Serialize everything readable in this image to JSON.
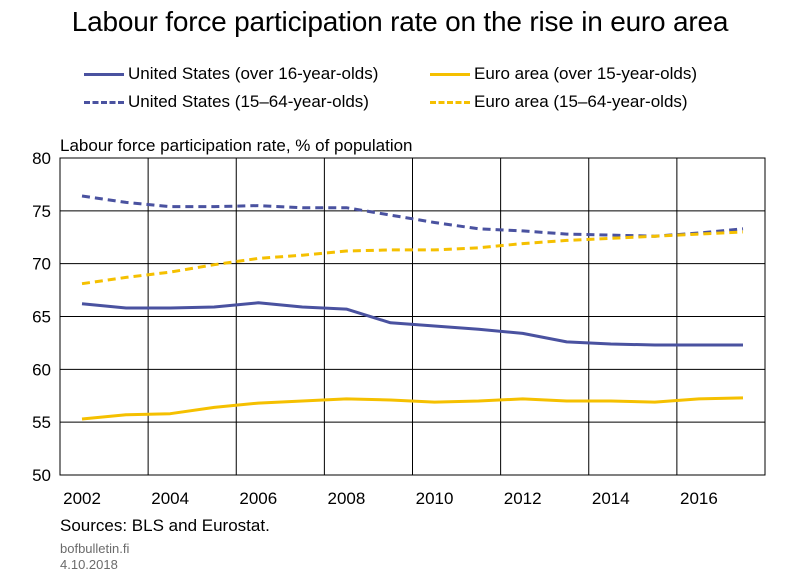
{
  "chart_data": {
    "type": "line",
    "title": "Labour force participation rate on the rise in euro area",
    "ylabel": "Labour force participation rate, % of population",
    "xlabel": "",
    "ylim": [
      50,
      80
    ],
    "xlim": [
      2001.5,
      2017.5
    ],
    "yticks": [
      50,
      55,
      60,
      65,
      70,
      75,
      80
    ],
    "xticks": [
      2002,
      2004,
      2006,
      2008,
      2010,
      2012,
      2014,
      2016
    ],
    "grid": true,
    "legend_position": "top",
    "x": [
      2002,
      2003,
      2004,
      2005,
      2006,
      2007,
      2008,
      2009,
      2010,
      2011,
      2012,
      2013,
      2014,
      2015,
      2016,
      2017
    ],
    "series": [
      {
        "name": "United States (over 16-year-olds)",
        "color": "#4a52a0",
        "style": "solid",
        "values": [
          66.2,
          65.8,
          65.8,
          65.9,
          66.3,
          65.9,
          65.7,
          64.4,
          64.1,
          63.8,
          63.4,
          62.6,
          62.4,
          62.3,
          62.3,
          62.3
        ]
      },
      {
        "name": "Euro area (over 15-year-olds)",
        "color": "#f5c000",
        "style": "solid",
        "values": [
          55.3,
          55.7,
          55.8,
          56.4,
          56.8,
          57.0,
          57.2,
          57.1,
          56.9,
          57.0,
          57.2,
          57.0,
          57.0,
          56.9,
          57.2,
          57.3
        ]
      },
      {
        "name": "United States (15–64-year-olds)",
        "color": "#4a52a0",
        "style": "dashed",
        "values": [
          76.4,
          75.8,
          75.4,
          75.4,
          75.5,
          75.3,
          75.3,
          74.6,
          73.9,
          73.3,
          73.1,
          72.8,
          72.7,
          72.6,
          72.9,
          73.3
        ]
      },
      {
        "name": "Euro area (15–64-year-olds)",
        "color": "#f5c000",
        "style": "dashed",
        "values": [
          68.1,
          68.7,
          69.2,
          69.9,
          70.5,
          70.8,
          71.2,
          71.3,
          71.3,
          71.5,
          71.9,
          72.2,
          72.4,
          72.6,
          72.8,
          73.0
        ]
      }
    ]
  },
  "footer": {
    "sources": "Sources: BLS and Eurostat.",
    "site": "bofbulletin.fi",
    "date": "4.10.2018"
  }
}
